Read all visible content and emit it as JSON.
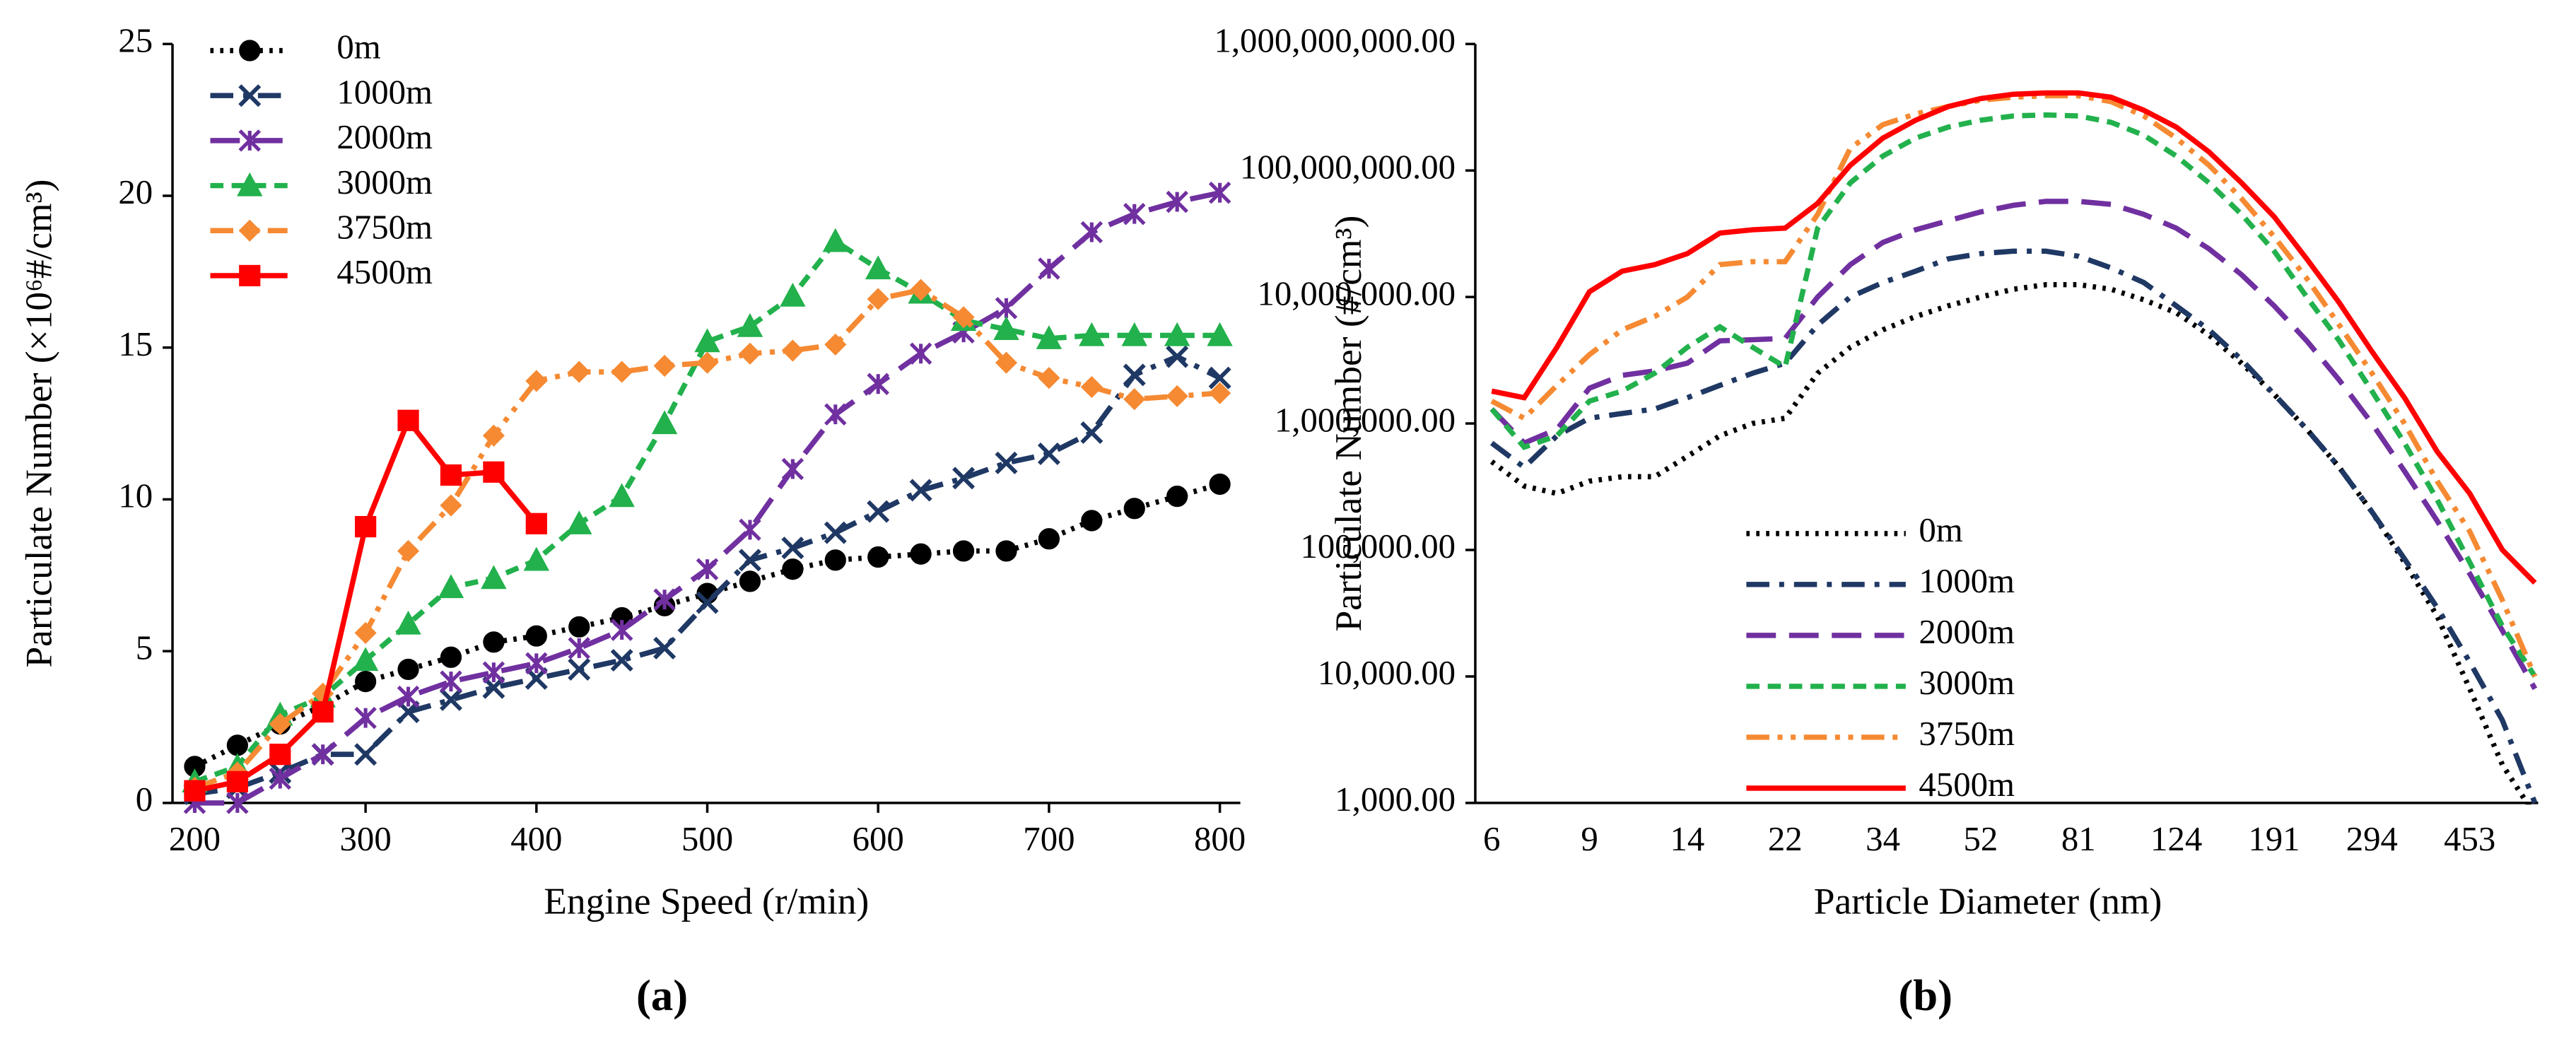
{
  "chart_data": [
    {
      "type": "line",
      "caption": "(a)",
      "xlabel": "Engine Speed (r/min)",
      "ylabel": "Particulate Number (×10⁶#/cm³)",
      "x": [
        200,
        225,
        250,
        275,
        300,
        325,
        350,
        375,
        400,
        425,
        450,
        475,
        500,
        525,
        550,
        575,
        600,
        625,
        650,
        675,
        700,
        725,
        750,
        775,
        800
      ],
      "xlim": [
        187,
        812
      ],
      "xticks": [
        200,
        300,
        400,
        500,
        600,
        700,
        800
      ],
      "ylim": [
        0,
        25
      ],
      "yticks": [
        0,
        5,
        10,
        15,
        20,
        25
      ],
      "legend": "upper left",
      "series": [
        {
          "name": "0m",
          "color": "#000000",
          "marker": "circle",
          "dash": "dotted",
          "values": [
            1.2,
            1.9,
            2.6,
            3.2,
            4.0,
            4.4,
            4.8,
            5.3,
            5.5,
            5.8,
            6.1,
            6.5,
            6.9,
            7.3,
            7.7,
            8.0,
            8.1,
            8.2,
            8.3,
            8.3,
            8.7,
            9.3,
            9.7,
            10.1,
            10.5
          ]
        },
        {
          "name": "1000m",
          "color": "#1f3864",
          "marker": "x",
          "dash": "dashdot",
          "values": [
            0.3,
            0.5,
            1.0,
            1.6,
            1.6,
            3.0,
            3.4,
            3.8,
            4.1,
            4.4,
            4.7,
            5.1,
            6.6,
            8.0,
            8.4,
            8.9,
            9.6,
            10.3,
            10.7,
            11.2,
            11.5,
            12.2,
            14.1,
            14.7,
            14.0
          ]
        },
        {
          "name": "2000m",
          "color": "#7030a0",
          "marker": "star",
          "dash": "longdash",
          "values": [
            0.0,
            0.0,
            0.8,
            1.6,
            2.8,
            3.5,
            4.0,
            4.3,
            4.6,
            5.1,
            5.7,
            6.7,
            7.7,
            9.0,
            11.0,
            12.8,
            13.8,
            14.8,
            15.5,
            16.3,
            17.6,
            18.8,
            19.4,
            19.8,
            20.1
          ]
        },
        {
          "name": "3000m",
          "color": "#22b14c",
          "marker": "triangle",
          "dash": "dash",
          "values": [
            0.7,
            1.2,
            2.9,
            3.5,
            4.7,
            5.9,
            7.1,
            7.4,
            8.0,
            9.2,
            10.1,
            12.5,
            15.2,
            15.7,
            16.7,
            18.5,
            17.6,
            16.8,
            15.9,
            15.6,
            15.3,
            15.4,
            15.4,
            15.4,
            15.4
          ]
        },
        {
          "name": "3750m",
          "color": "#f58a33",
          "marker": "diamond",
          "dash": "dashdotdot",
          "values": [
            0.5,
            1.0,
            2.6,
            3.6,
            5.6,
            8.3,
            9.8,
            12.1,
            13.9,
            14.2,
            14.2,
            14.4,
            14.5,
            14.8,
            14.9,
            15.1,
            16.6,
            16.9,
            16.0,
            14.5,
            14.0,
            13.7,
            13.3,
            13.4,
            13.5
          ]
        },
        {
          "name": "4500m",
          "color": "#ff0000",
          "marker": "square",
          "dash": "solid",
          "values": [
            0.4,
            0.7,
            1.6,
            3.0,
            9.1,
            12.6,
            10.8,
            10.9,
            9.2,
            null,
            null,
            null,
            null,
            null,
            null,
            null,
            null,
            null,
            null,
            null,
            null,
            null,
            null,
            null,
            null
          ]
        }
      ]
    },
    {
      "type": "line",
      "caption": "(b)",
      "xlabel": "Particle Diameter (nm)",
      "ylabel": "Particulate Number (#/cm³)",
      "categories": [
        "6",
        null,
        null,
        "9",
        null,
        null,
        "14",
        null,
        null,
        "22",
        null,
        null,
        "34",
        null,
        null,
        "52",
        null,
        null,
        "81",
        null,
        null,
        "124",
        null,
        null,
        "191",
        null,
        null,
        "294",
        null,
        null,
        "453",
        null,
        null
      ],
      "log": true,
      "ylim": [
        1000,
        1000000000
      ],
      "yticks": [
        {
          "value": 1000,
          "label": "1,000.00"
        },
        {
          "value": 10000,
          "label": "10,000.00"
        },
        {
          "value": 100000,
          "label": "100,000.00"
        },
        {
          "value": 1000000,
          "label": "1,000,000.00"
        },
        {
          "value": 10000000,
          "label": "10,000,000.00"
        },
        {
          "value": 100000000,
          "label": "100,000,000.00"
        },
        {
          "value": 1000000000,
          "label": "1,000,000,000.00"
        }
      ],
      "legend": "lower left",
      "series": [
        {
          "name": "0m",
          "color": "#000000",
          "dash": "dotted",
          "values": [
            500000,
            320000,
            280000,
            350000,
            380000,
            380000,
            550000,
            800000,
            1000000,
            1100000,
            2500000,
            4000000,
            5500000,
            7000000,
            8500000,
            10000000,
            11500000,
            12500000,
            12500000,
            11500000,
            9500000,
            7500000,
            5000000,
            3000000,
            1700000,
            900000,
            450000,
            200000,
            80000,
            30000,
            8000,
            2000,
            800
          ]
        },
        {
          "name": "1000m",
          "color": "#1f3864",
          "dash": "dashdot",
          "values": [
            700000,
            450000,
            800000,
            1100000,
            1200000,
            1300000,
            1600000,
            2000000,
            2500000,
            3000000,
            6000000,
            10000000,
            13000000,
            16000000,
            20000000,
            22000000,
            23000000,
            23000000,
            21000000,
            17000000,
            13000000,
            8500000,
            5500000,
            3200000,
            1700000,
            900000,
            450000,
            200000,
            85000,
            35000,
            13000,
            4500,
            1000
          ]
        },
        {
          "name": "2000m",
          "color": "#7030a0",
          "dash": "longdash",
          "values": [
            1300000,
            700000,
            900000,
            1900000,
            2400000,
            2600000,
            3000000,
            4500000,
            4600000,
            4700000,
            10000000,
            18000000,
            27000000,
            34000000,
            40000000,
            47000000,
            53000000,
            57000000,
            57000000,
            54000000,
            45000000,
            35000000,
            24000000,
            15000000,
            8500000,
            4500000,
            2200000,
            1000000,
            420000,
            170000,
            65000,
            23000,
            8000
          ]
        },
        {
          "name": "3000m",
          "color": "#22b14c",
          "dash": "dash",
          "values": [
            1300000,
            650000,
            800000,
            1500000,
            1800000,
            2500000,
            4000000,
            5800000,
            4000000,
            2800000,
            35000000,
            80000000,
            130000000,
            180000000,
            220000000,
            250000000,
            270000000,
            275000000,
            270000000,
            240000000,
            190000000,
            130000000,
            80000000,
            45000000,
            23000000,
            10000000,
            4500000,
            1800000,
            700000,
            250000,
            80000,
            25000,
            10000
          ]
        },
        {
          "name": "3750m",
          "color": "#f58a33",
          "dash": "dashdotdot",
          "values": [
            1500000,
            1100000,
            2000000,
            3500000,
            5500000,
            7000000,
            10000000,
            18000000,
            19000000,
            19000000,
            45000000,
            150000000,
            230000000,
            280000000,
            320000000,
            360000000,
            380000000,
            390000000,
            390000000,
            350000000,
            270000000,
            180000000,
            110000000,
            60000000,
            30000000,
            14000000,
            6000000,
            2500000,
            1000000,
            350000,
            140000,
            40000,
            10000
          ]
        },
        {
          "name": "4500m",
          "color": "#ff0000",
          "dash": "solid",
          "values": [
            1800000,
            1600000,
            4000000,
            11000000,
            16000000,
            18000000,
            22000000,
            32000000,
            34000000,
            35000000,
            55000000,
            110000000,
            180000000,
            250000000,
            320000000,
            370000000,
            400000000,
            410000000,
            410000000,
            380000000,
            300000000,
            220000000,
            140000000,
            80000000,
            43000000,
            20000000,
            9000000,
            3700000,
            1600000,
            600000,
            280000,
            100000,
            55000
          ]
        }
      ]
    }
  ]
}
